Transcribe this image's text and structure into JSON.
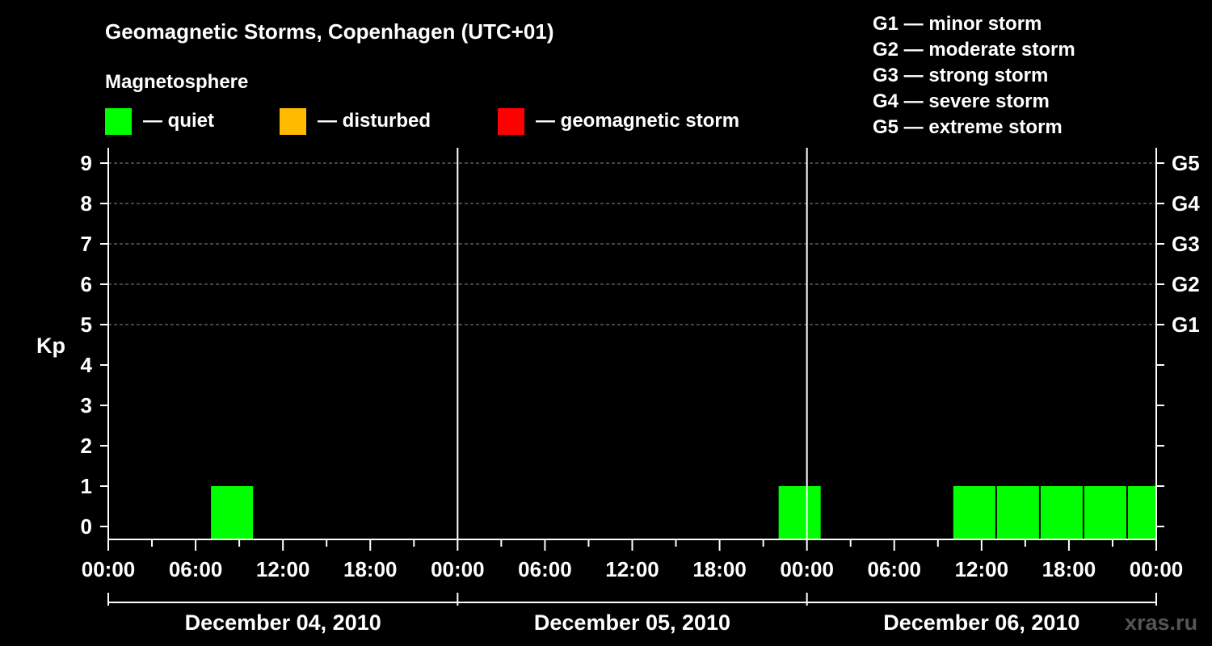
{
  "chart_data": {
    "type": "bar",
    "title": "Geomagnetic Storms, Copenhagen (UTC+01)",
    "ylabel": "Kp",
    "ylim": [
      0,
      9
    ],
    "yticks": [
      "0",
      "1",
      "2",
      "3",
      "4",
      "5",
      "6",
      "7",
      "8",
      "9"
    ],
    "right_axis_labels": [
      {
        "kp": 5,
        "label": "G1"
      },
      {
        "kp": 6,
        "label": "G2"
      },
      {
        "kp": 7,
        "label": "G3"
      },
      {
        "kp": 8,
        "label": "G4"
      },
      {
        "kp": 9,
        "label": "G5"
      }
    ],
    "x_start": "2010-12-04T00:00",
    "x_end": "2010-12-07T00:00",
    "x_tick_labels": [
      "00:00",
      "06:00",
      "12:00",
      "18:00",
      "00:00",
      "06:00",
      "12:00",
      "18:00",
      "00:00",
      "06:00",
      "12:00",
      "18:00",
      "00:00"
    ],
    "x_tick_times": [
      "2010-12-04T00:00",
      "2010-12-04T06:00",
      "2010-12-04T12:00",
      "2010-12-04T18:00",
      "2010-12-05T00:00",
      "2010-12-05T06:00",
      "2010-12-05T12:00",
      "2010-12-05T18:00",
      "2010-12-06T00:00",
      "2010-12-06T06:00",
      "2010-12-06T12:00",
      "2010-12-06T18:00",
      "2010-12-07T00:00"
    ],
    "days": [
      {
        "label": "December 04, 2010",
        "start": "2010-12-04T00:00",
        "end": "2010-12-05T00:00"
      },
      {
        "label": "December 05, 2010",
        "start": "2010-12-05T00:00",
        "end": "2010-12-06T00:00"
      },
      {
        "label": "December 06, 2010",
        "start": "2010-12-06T00:00",
        "end": "2010-12-07T00:00"
      }
    ],
    "bars": [
      {
        "start": "2010-12-04T07:00",
        "end": "2010-12-04T10:00",
        "kp": 1,
        "status": "quiet"
      },
      {
        "start": "2010-12-05T22:00",
        "end": "2010-12-06T01:00",
        "kp": 1,
        "status": "quiet"
      },
      {
        "start": "2010-12-06T10:00",
        "end": "2010-12-06T13:00",
        "kp": 1,
        "status": "quiet"
      },
      {
        "start": "2010-12-06T13:00",
        "end": "2010-12-06T16:00",
        "kp": 1,
        "status": "quiet"
      },
      {
        "start": "2010-12-06T16:00",
        "end": "2010-12-06T19:00",
        "kp": 1,
        "status": "quiet"
      },
      {
        "start": "2010-12-06T19:00",
        "end": "2010-12-06T22:00",
        "kp": 1,
        "status": "quiet"
      },
      {
        "start": "2010-12-06T22:00",
        "end": "2010-12-07T00:00",
        "kp": 1,
        "status": "quiet"
      }
    ],
    "grid": "dashed horizontal at Kp 5-9"
  },
  "legend": {
    "heading": "Magnetosphere",
    "items": [
      {
        "label": "— quiet",
        "color": "#00ff00"
      },
      {
        "label": "— disturbed",
        "color": "#ffbb00"
      },
      {
        "label": "— geomagnetic storm",
        "color": "#ff0000"
      }
    ]
  },
  "storm_scale": [
    "G1 — minor storm",
    "G2 — moderate storm",
    "G3 — strong storm",
    "G4 — severe storm",
    "G5 — extreme storm"
  ],
  "watermark": "xras.ru",
  "colors": {
    "background": "#000000",
    "axis": "#ffffff",
    "grid": "#888888",
    "quiet": "#00ff00",
    "disturbed": "#ffbb00",
    "storm": "#ff0000"
  }
}
